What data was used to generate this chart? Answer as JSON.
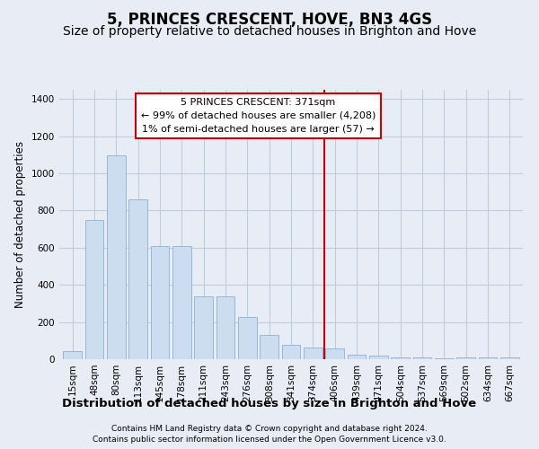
{
  "title": "5, PRINCES CRESCENT, HOVE, BN3 4GS",
  "subtitle": "Size of property relative to detached houses in Brighton and Hove",
  "xlabel": "Distribution of detached houses by size in Brighton and Hove",
  "ylabel": "Number of detached properties",
  "footer1": "Contains HM Land Registry data © Crown copyright and database right 2024.",
  "footer2": "Contains public sector information licensed under the Open Government Licence v3.0.",
  "bar_labels": [
    "15sqm",
    "48sqm",
    "80sqm",
    "113sqm",
    "145sqm",
    "178sqm",
    "211sqm",
    "243sqm",
    "276sqm",
    "308sqm",
    "341sqm",
    "374sqm",
    "406sqm",
    "439sqm",
    "471sqm",
    "504sqm",
    "537sqm",
    "569sqm",
    "602sqm",
    "634sqm",
    "667sqm"
  ],
  "bar_values": [
    45,
    750,
    1095,
    860,
    610,
    610,
    340,
    340,
    225,
    130,
    75,
    65,
    60,
    25,
    20,
    12,
    8,
    5,
    8,
    8,
    8
  ],
  "bar_color": "#ccddf0",
  "bar_edge_color": "#8ab0d8",
  "vline_color": "#cc0000",
  "annotation_title": "5 PRINCES CRESCENT: 371sqm",
  "annotation_line1": "← 99% of detached houses are smaller (4,208)",
  "annotation_line2": "1% of semi-detached houses are larger (57) →",
  "annotation_box_color": "white",
  "annotation_box_edge_color": "#cc0000",
  "ylim": [
    0,
    1450
  ],
  "yticks": [
    0,
    200,
    400,
    600,
    800,
    1000,
    1200,
    1400
  ],
  "grid_color": "#c0ccde",
  "background_color": "#e8edf5",
  "title_fontsize": 12,
  "subtitle_fontsize": 10,
  "xlabel_fontsize": 9.5,
  "ylabel_fontsize": 8.5,
  "tick_fontsize": 7.5,
  "annotation_fontsize": 8,
  "footer_fontsize": 6.5
}
